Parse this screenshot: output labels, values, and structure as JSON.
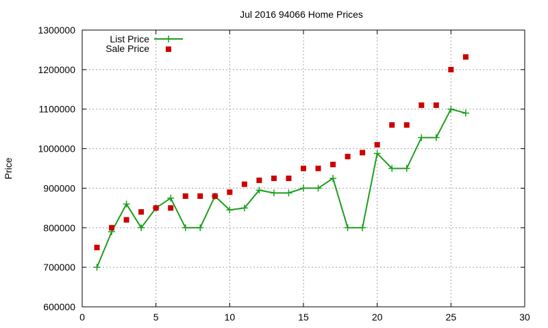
{
  "chart_data": {
    "type": "line",
    "title": "Jul 2016 94066 Home Prices",
    "xlabel": "",
    "ylabel": "Price",
    "xlim": [
      0,
      30
    ],
    "ylim": [
      600000,
      1300000
    ],
    "xticks": [
      0,
      5,
      10,
      15,
      20,
      25,
      30
    ],
    "yticks": [
      600000,
      700000,
      800000,
      900000,
      1000000,
      1100000,
      1200000,
      1300000
    ],
    "grid": true,
    "legend_position": "top-left",
    "series": [
      {
        "name": "List Price",
        "style": "line-with-plus-markers",
        "color": "#1a9e1a",
        "x": [
          1,
          2,
          3,
          4,
          5,
          6,
          7,
          8,
          9,
          10,
          11,
          12,
          13,
          14,
          15,
          16,
          17,
          18,
          19,
          20,
          21,
          22,
          23,
          24,
          25,
          26
        ],
        "values": [
          700000,
          790000,
          860000,
          800000,
          850000,
          875000,
          800000,
          800000,
          880000,
          845000,
          850000,
          895000,
          888000,
          888000,
          900000,
          900000,
          925000,
          800000,
          800000,
          988000,
          950000,
          950000,
          1028000,
          1028000,
          1100000,
          1090000
        ]
      },
      {
        "name": "Sale Price",
        "style": "square-markers",
        "color": "#cc0000",
        "x": [
          1,
          2,
          3,
          4,
          5,
          6,
          7,
          8,
          9,
          10,
          11,
          12,
          13,
          14,
          15,
          16,
          17,
          18,
          19,
          20,
          21,
          22,
          23,
          24,
          25,
          26
        ],
        "values": [
          750000,
          800000,
          820000,
          840000,
          850000,
          850000,
          880000,
          880000,
          880000,
          890000,
          910000,
          920000,
          925000,
          925000,
          950000,
          950000,
          960000,
          980000,
          990000,
          1010000,
          1060000,
          1060000,
          1110000,
          1110000,
          1200000,
          1232000
        ]
      }
    ]
  }
}
